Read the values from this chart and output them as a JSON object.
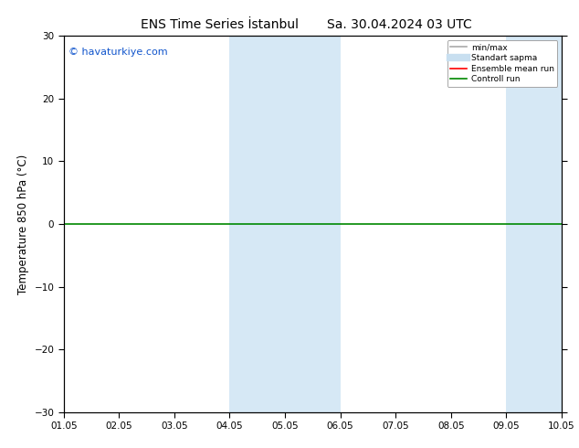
{
  "title_left": "ENS Time Series İstanbul",
  "title_right": "Sa. 30.04.2024 03 UTC",
  "ylabel": "Temperature 850 hPa (°C)",
  "ylim": [
    -30,
    30
  ],
  "yticks": [
    -30,
    -20,
    -10,
    0,
    10,
    20,
    30
  ],
  "xlabel_ticks": [
    "01.05",
    "02.05",
    "03.05",
    "04.05",
    "05.05",
    "06.05",
    "07.05",
    "08.05",
    "09.05",
    "10.05"
  ],
  "watermark": "© havaturkiye.com",
  "bg_color": "#ffffff",
  "plot_bg_color": "#ffffff",
  "shaded_regions": [
    {
      "xstart": 3.0,
      "xend": 5.0,
      "color": "#d6e8f5"
    },
    {
      "xstart": 8.0,
      "xend": 9.0,
      "color": "#d6e8f5"
    }
  ],
  "legend_entries": [
    {
      "label": "min/max",
      "color": "#aaaaaa",
      "lw": 1.2,
      "style": "solid"
    },
    {
      "label": "Standart sapma",
      "color": "#c8dff0",
      "lw": 6,
      "style": "solid"
    },
    {
      "label": "Ensemble mean run",
      "color": "#ff0000",
      "lw": 1.2,
      "style": "solid"
    },
    {
      "label": "Controll run",
      "color": "#008800",
      "lw": 1.2,
      "style": "solid"
    }
  ],
  "hline_y": 0,
  "hline_color": "#008800",
  "hline_lw": 1.2,
  "tick_label_fontsize": 7.5,
  "ylabel_fontsize": 8.5,
  "title_fontsize": 10,
  "watermark_fontsize": 8,
  "watermark_color": "#1155cc"
}
